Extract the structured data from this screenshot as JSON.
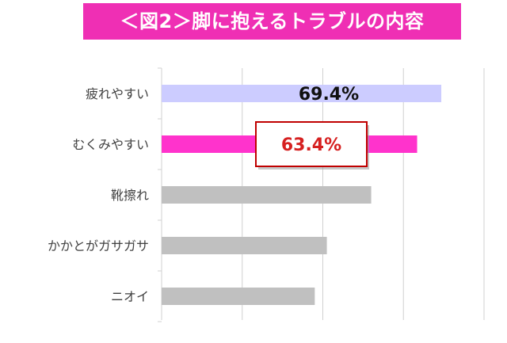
{
  "title": "＜図2＞脚に抱えるトラブルの内容",
  "colors": {
    "title_bg": "#ef2fb4",
    "title_text": "#ffffff",
    "grid": "#d0d0d0",
    "callout_border": "#c00000",
    "callout_text": "#d62020"
  },
  "chart_data": {
    "type": "bar",
    "orientation": "horizontal",
    "title": "＜図2＞脚に抱えるトラブルの内容",
    "categories": [
      "疲れやすい",
      "むくみやすい",
      "靴擦れ",
      "かかとがガサガサ",
      "ニオイ"
    ],
    "values": [
      69.4,
      63.4,
      52.0,
      41.0,
      38.0
    ],
    "bar_colors": [
      "#ccccff",
      "#ff33cc",
      "#c0c0c0",
      "#c0c0c0",
      "#c0c0c0"
    ],
    "data_labels": [
      {
        "index": 0,
        "text": "69.4%",
        "style": "plain"
      },
      {
        "index": 1,
        "text": "63.4%",
        "style": "boxed"
      }
    ],
    "xlim": [
      0,
      80
    ],
    "x_grid_step": 20,
    "grid": true,
    "x_tick_labels_visible": false
  }
}
